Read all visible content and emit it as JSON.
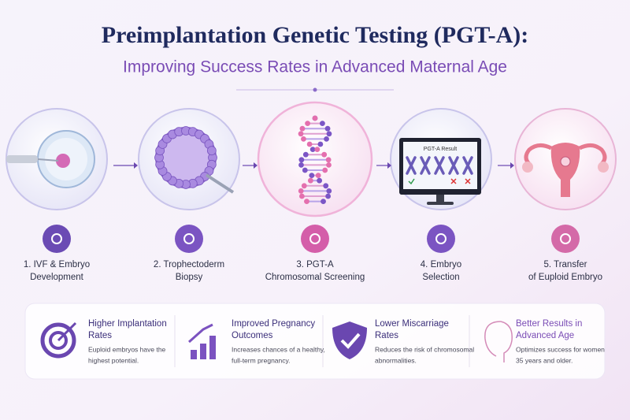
{
  "header": {
    "title": "Preimplantation Genetic Testing (PGT-A):",
    "subtitle": "Improving Success Rates in Advanced Maternal Age"
  },
  "steps": [
    {
      "lines": [
        "1. IVF & Embryo",
        "Development"
      ]
    },
    {
      "lines": [
        "2. Trophectoderm",
        "Biopsy"
      ]
    },
    {
      "lines": [
        "3. PGT-A",
        "Chromosomal Screening"
      ],
      "screen": null
    },
    {
      "lines": [
        "4. Embryo",
        "Selection"
      ],
      "screen_label": "PGT-A Result"
    },
    {
      "lines": [
        "5. Transfer",
        "of Euploid Embryo"
      ]
    }
  ],
  "benefits": [
    {
      "title": [
        "Higher Implantation",
        "Rates"
      ],
      "description": [
        "Euploid embryos have the",
        "highest potential."
      ]
    },
    {
      "title": [
        "Improved Pregnancy",
        "Outcomes"
      ],
      "description": [
        "Increases chances of a healthy,",
        "full-term pregnancy."
      ]
    },
    {
      "title": [
        "Lower Miscarriage",
        "Rates"
      ],
      "description": [
        "Reduces the risk of chromosomal",
        "abnormalities."
      ]
    },
    {
      "title": [
        "Better Results in",
        "Advanced Age"
      ],
      "description": [
        "Optimizes success for women",
        "35 years and older."
      ]
    }
  ]
}
